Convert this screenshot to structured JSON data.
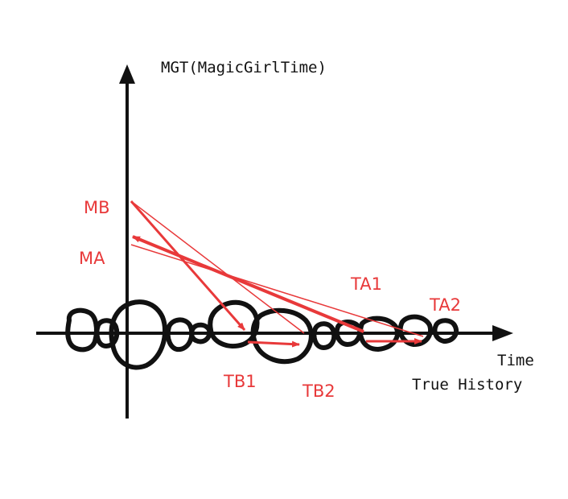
{
  "axis": {
    "y_label": "MGT(MagicGirlTime)",
    "x_label_1": "Time",
    "x_label_2": "True History"
  },
  "labels": {
    "mb": "MB",
    "ma": "MA",
    "ta1": "TA1",
    "ta2": "TA2",
    "tb1": "TB1",
    "tb2": "TB2"
  },
  "colors": {
    "axis": "#111111",
    "accent": "#e8393a"
  }
}
